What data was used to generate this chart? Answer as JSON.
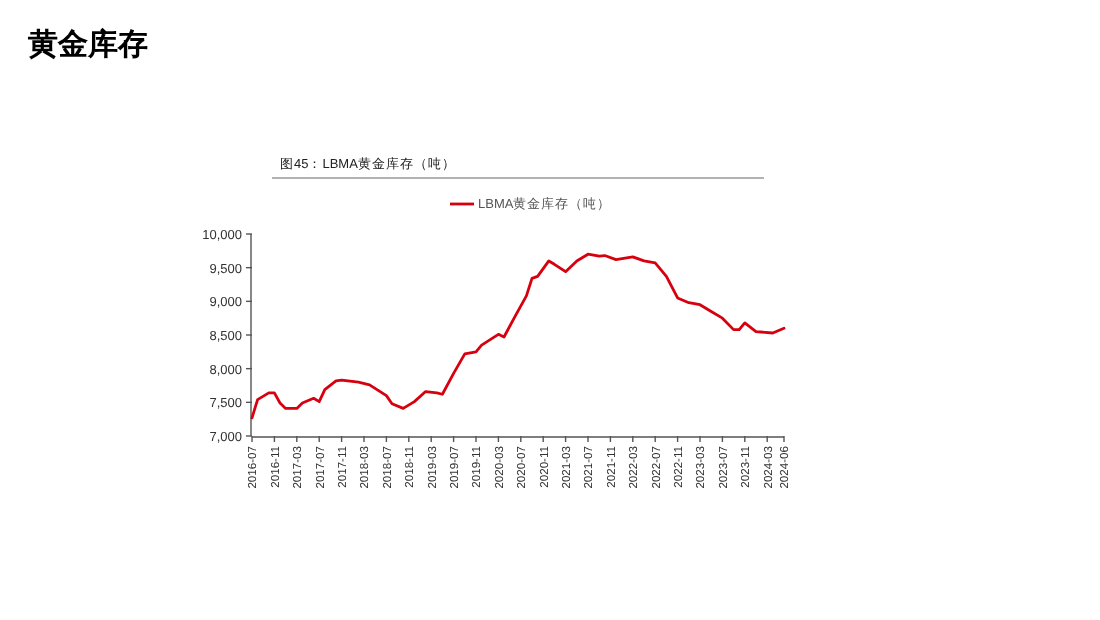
{
  "chart_data": {
    "type": "line",
    "title": "黄金库存",
    "subtitle": "图45：LBMA黄金库存（吨）",
    "x": [
      "2016-07",
      "2016-08",
      "2016-10",
      "2016-11",
      "2016-12",
      "2017-01",
      "2017-03",
      "2017-04",
      "2017-06",
      "2017-07",
      "2017-08",
      "2017-10",
      "2017-11",
      "2018-02",
      "2018-04",
      "2018-07",
      "2018-08",
      "2018-10",
      "2018-12",
      "2019-02",
      "2019-04",
      "2019-05",
      "2019-07",
      "2019-09",
      "2019-11",
      "2019-12",
      "2020-03",
      "2020-04",
      "2020-06",
      "2020-08",
      "2020-09",
      "2020-10",
      "2020-12",
      "2021-01",
      "2021-03",
      "2021-05",
      "2021-07",
      "2021-09",
      "2021-10",
      "2021-12",
      "2022-03",
      "2022-05",
      "2022-07",
      "2022-09",
      "2022-11",
      "2023-01",
      "2023-03",
      "2023-05",
      "2023-07",
      "2023-09",
      "2023-10",
      "2023-11",
      "2024-01",
      "2024-04",
      "2024-06"
    ],
    "series": [
      {
        "name": "LBMA黄金库存（吨）",
        "color": "#d7000f",
        "values": [
          7270,
          7540,
          7640,
          7640,
          7490,
          7410,
          7410,
          7490,
          7560,
          7510,
          7690,
          7820,
          7830,
          7800,
          7760,
          7600,
          7480,
          7410,
          7510,
          7660,
          7640,
          7620,
          7930,
          8220,
          8250,
          8350,
          8510,
          8470,
          8780,
          9080,
          9340,
          9370,
          9600,
          9550,
          9440,
          9600,
          9700,
          9670,
          9680,
          9620,
          9660,
          9600,
          9570,
          9370,
          9050,
          8980,
          8950,
          8850,
          8750,
          8580,
          8580,
          8680,
          8550,
          8530,
          8600
        ]
      }
    ],
    "xlim": [
      "2016-07",
      "2024-06"
    ],
    "xticks": [
      "2016-07",
      "2016-11",
      "2017-03",
      "2017-07",
      "2017-11",
      "2018-03",
      "2018-07",
      "2018-11",
      "2019-03",
      "2019-07",
      "2019-11",
      "2020-03",
      "2020-07",
      "2020-11",
      "2021-03",
      "2021-07",
      "2021-11",
      "2022-03",
      "2022-07",
      "2022-11",
      "2023-03",
      "2023-07",
      "2023-11",
      "2024-03",
      "2024-06"
    ],
    "ylim": [
      7000,
      10000
    ],
    "yticks": [
      {
        "value": 7000,
        "label": "7,000"
      },
      {
        "value": 7500,
        "label": "7,500"
      },
      {
        "value": 8000,
        "label": "8,000"
      },
      {
        "value": 8500,
        "label": "8,500"
      },
      {
        "value": 9000,
        "label": "9,000"
      },
      {
        "value": 9500,
        "label": "9,500"
      },
      {
        "value": 10000,
        "label": "10,000"
      }
    ],
    "legend": "top",
    "grid": false
  }
}
